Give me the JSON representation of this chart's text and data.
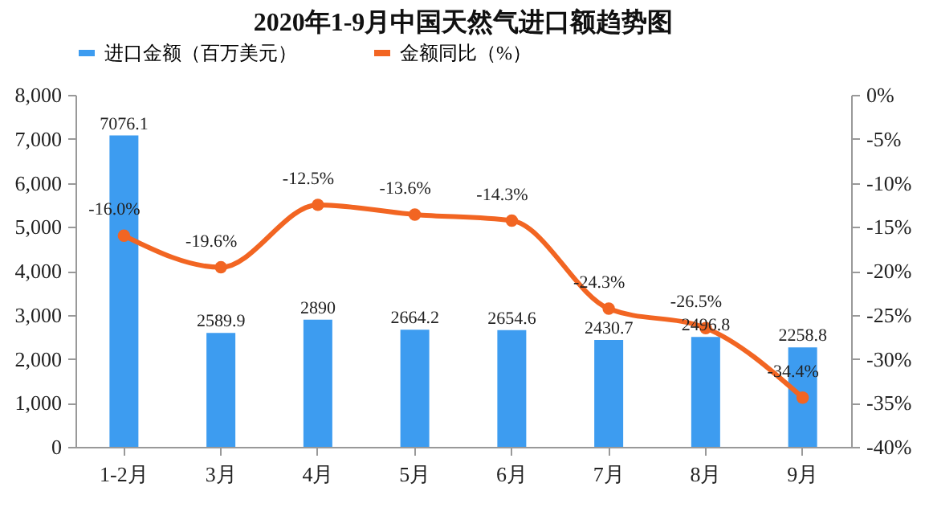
{
  "chart_data": {
    "type": "bar",
    "title": "2020年1-9月中国天然气进口额趋势图",
    "legend": "top",
    "categories": [
      "1-2月",
      "3月",
      "4月",
      "5月",
      "6月",
      "7月",
      "8月",
      "9月"
    ],
    "series": [
      {
        "name": "进口金额（百万美元）",
        "color": "#3d9cf0",
        "values": [
          7076.1,
          2589.9,
          2890,
          2664.2,
          2654.6,
          2430.7,
          2496.8,
          2258.8
        ],
        "value_labels": [
          "7076.1",
          "2589.9",
          "2890",
          "2664.2",
          "2654.6",
          "2430.7",
          "2496.8",
          "2258.8"
        ]
      },
      {
        "name": "金额同比（%）",
        "type": "line",
        "axis": "y2",
        "color": "#f26522",
        "marker": "circle",
        "values": [
          -16.0,
          -19.6,
          -12.5,
          -13.6,
          -14.3,
          -24.3,
          -26.5,
          -34.4
        ],
        "value_labels": [
          "-16.0%",
          "-19.6%",
          "-12.5%",
          "-13.6%",
          "-14.3%",
          "-24.3%",
          "-26.5%",
          "-34.4%"
        ]
      }
    ],
    "ylim": [
      0,
      8000
    ],
    "yticks": [
      {
        "value": 0,
        "label": "0"
      },
      {
        "value": 1000,
        "label": "1,000"
      },
      {
        "value": 2000,
        "label": "2,000"
      },
      {
        "value": 3000,
        "label": "3,000"
      },
      {
        "value": 4000,
        "label": "4,000"
      },
      {
        "value": 5000,
        "label": "5,000"
      },
      {
        "value": 6000,
        "label": "6,000"
      },
      {
        "value": 7000,
        "label": "7,000"
      },
      {
        "value": 8000,
        "label": "8,000"
      }
    ],
    "y2lim": [
      -40,
      0
    ],
    "y2ticks": [
      {
        "value": -40,
        "label": "-40%"
      },
      {
        "value": -35,
        "label": "-35%"
      },
      {
        "value": -30,
        "label": "-30%"
      },
      {
        "value": -25,
        "label": "-25%"
      },
      {
        "value": -20,
        "label": "-20%"
      },
      {
        "value": -15,
        "label": "-15%"
      },
      {
        "value": -10,
        "label": "-10%"
      },
      {
        "value": -5,
        "label": "-5%"
      },
      {
        "value": 0,
        "label": "0%"
      }
    ],
    "grid": false
  }
}
